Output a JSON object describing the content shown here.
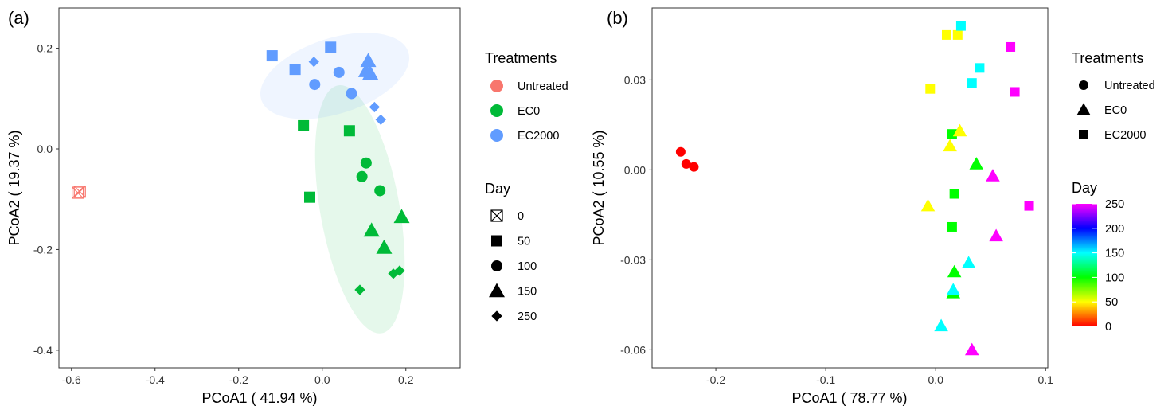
{
  "chart_data": [
    {
      "type": "scatter",
      "panel_label": "(a)",
      "xlabel": "PCoA1 ( 41.94 %)",
      "ylabel": "PCoA2 ( 19.37 %)",
      "xlim": [
        -0.63,
        0.33
      ],
      "ylim": [
        -0.435,
        0.28
      ],
      "xticks": [
        -0.6,
        -0.4,
        -0.2,
        0.0,
        0.2
      ],
      "xtick_labels": [
        "-0.6",
        "-0.4",
        "-0.2",
        "0.0",
        "0.2"
      ],
      "yticks": [
        -0.4,
        -0.2,
        0.0,
        0.2
      ],
      "ytick_labels": [
        "-0.4",
        "-0.2",
        "0.0",
        "0.2"
      ],
      "grid": false,
      "legend_position": "right",
      "legends": [
        {
          "title": "Treatments",
          "items": [
            {
              "label": "Untreated",
              "color": "#F8766D"
            },
            {
              "label": "EC0",
              "color": "#00BA38"
            },
            {
              "label": "EC2000",
              "color": "#619CFF"
            }
          ]
        },
        {
          "title": "Day",
          "items": [
            {
              "label": "0",
              "shape": "square-cross"
            },
            {
              "label": "50",
              "shape": "square"
            },
            {
              "label": "100",
              "shape": "circle"
            },
            {
              "label": "150",
              "shape": "triangle"
            },
            {
              "label": "250",
              "shape": "diamond"
            }
          ]
        }
      ],
      "ellipses": [
        {
          "group": "EC0",
          "color": "#00BA38",
          "center": [
            0.09,
            -0.12
          ],
          "rx": 0.095,
          "ry": 0.25,
          "angle_deg": 10
        },
        {
          "group": "EC2000",
          "color": "#619CFF",
          "center": [
            0.03,
            0.145
          ],
          "rx": 0.185,
          "ry": 0.075,
          "angle_deg": 18
        }
      ],
      "points": [
        {
          "x": -0.585,
          "y": -0.087,
          "treatment": "Untreated",
          "day": 0
        },
        {
          "x": -0.58,
          "y": -0.085,
          "treatment": "Untreated",
          "day": 0
        },
        {
          "x": -0.12,
          "y": 0.185,
          "treatment": "EC2000",
          "day": 50
        },
        {
          "x": -0.065,
          "y": 0.158,
          "treatment": "EC2000",
          "day": 50
        },
        {
          "x": 0.02,
          "y": 0.202,
          "treatment": "EC2000",
          "day": 50
        },
        {
          "x": -0.018,
          "y": 0.128,
          "treatment": "EC2000",
          "day": 100
        },
        {
          "x": 0.04,
          "y": 0.152,
          "treatment": "EC2000",
          "day": 100
        },
        {
          "x": 0.07,
          "y": 0.11,
          "treatment": "EC2000",
          "day": 100
        },
        {
          "x": 0.11,
          "y": 0.175,
          "treatment": "EC2000",
          "day": 150
        },
        {
          "x": 0.105,
          "y": 0.155,
          "treatment": "EC2000",
          "day": 150
        },
        {
          "x": 0.115,
          "y": 0.15,
          "treatment": "EC2000",
          "day": 150
        },
        {
          "x": -0.02,
          "y": 0.173,
          "treatment": "EC2000",
          "day": 250
        },
        {
          "x": 0.125,
          "y": 0.083,
          "treatment": "EC2000",
          "day": 250
        },
        {
          "x": 0.14,
          "y": 0.058,
          "treatment": "EC2000",
          "day": 250
        },
        {
          "x": -0.045,
          "y": 0.046,
          "treatment": "EC0",
          "day": 50
        },
        {
          "x": 0.065,
          "y": 0.036,
          "treatment": "EC0",
          "day": 50
        },
        {
          "x": -0.03,
          "y": -0.096,
          "treatment": "EC0",
          "day": 50
        },
        {
          "x": 0.105,
          "y": -0.028,
          "treatment": "EC0",
          "day": 100
        },
        {
          "x": 0.095,
          "y": -0.055,
          "treatment": "EC0",
          "day": 100
        },
        {
          "x": 0.138,
          "y": -0.083,
          "treatment": "EC0",
          "day": 100
        },
        {
          "x": 0.19,
          "y": -0.135,
          "treatment": "EC0",
          "day": 150
        },
        {
          "x": 0.118,
          "y": -0.162,
          "treatment": "EC0",
          "day": 150
        },
        {
          "x": 0.148,
          "y": -0.196,
          "treatment": "EC0",
          "day": 150
        },
        {
          "x": 0.09,
          "y": -0.28,
          "treatment": "EC0",
          "day": 250
        },
        {
          "x": 0.17,
          "y": -0.248,
          "treatment": "EC0",
          "day": 250
        },
        {
          "x": 0.185,
          "y": -0.242,
          "treatment": "EC0",
          "day": 250
        }
      ]
    },
    {
      "type": "scatter",
      "panel_label": "(b)",
      "xlabel": "PCoA1 ( 78.77 %)",
      "ylabel": "PCoA2 ( 10.55 %)",
      "xlim": [
        -0.258,
        0.102
      ],
      "ylim": [
        -0.066,
        0.054
      ],
      "xticks": [
        -0.2,
        -0.1,
        0.0,
        0.1
      ],
      "xtick_labels": [
        "-0.2",
        "-0.1",
        "0.0",
        "0.1"
      ],
      "yticks": [
        -0.06,
        -0.03,
        0.0,
        0.03
      ],
      "ytick_labels": [
        "-0.06",
        "-0.03",
        "0.00",
        "0.03"
      ],
      "grid": false,
      "legend_position": "right",
      "legends": [
        {
          "title": "Treatments",
          "items": [
            {
              "label": "Untreated",
              "shape": "circle"
            },
            {
              "label": "EC0",
              "shape": "triangle"
            },
            {
              "label": "EC2000",
              "shape": "square"
            }
          ]
        },
        {
          "title": "Day",
          "type": "colorbar",
          "range": [
            0,
            250
          ],
          "ticks": [
            "0",
            "50",
            "100",
            "150",
            "200",
            "250"
          ],
          "tick_values": [
            0,
            50,
            100,
            150,
            200,
            250
          ],
          "colors": [
            "#FF0000",
            "#FFFF00",
            "#00FF00",
            "#00FFFF",
            "#0000FF",
            "#FF00FF"
          ]
        }
      ],
      "points": [
        {
          "x": -0.232,
          "y": 0.006,
          "treatment": "Untreated",
          "day": 0
        },
        {
          "x": -0.227,
          "y": 0.002,
          "treatment": "Untreated",
          "day": 0
        },
        {
          "x": -0.22,
          "y": 0.001,
          "treatment": "Untreated",
          "day": 0
        },
        {
          "x": 0.01,
          "y": 0.045,
          "treatment": "EC2000",
          "day": 50
        },
        {
          "x": 0.02,
          "y": 0.045,
          "treatment": "EC2000",
          "day": 50
        },
        {
          "x": -0.005,
          "y": 0.027,
          "treatment": "EC2000",
          "day": 50
        },
        {
          "x": 0.015,
          "y": 0.012,
          "treatment": "EC2000",
          "day": 100
        },
        {
          "x": 0.017,
          "y": -0.008,
          "treatment": "EC2000",
          "day": 100
        },
        {
          "x": 0.015,
          "y": -0.019,
          "treatment": "EC2000",
          "day": 100
        },
        {
          "x": 0.023,
          "y": 0.048,
          "treatment": "EC2000",
          "day": 150
        },
        {
          "x": 0.04,
          "y": 0.034,
          "treatment": "EC2000",
          "day": 150
        },
        {
          "x": 0.033,
          "y": 0.029,
          "treatment": "EC2000",
          "day": 150
        },
        {
          "x": 0.068,
          "y": 0.041,
          "treatment": "EC2000",
          "day": 250
        },
        {
          "x": 0.072,
          "y": 0.026,
          "treatment": "EC2000",
          "day": 250
        },
        {
          "x": 0.085,
          "y": -0.012,
          "treatment": "EC2000",
          "day": 250
        },
        {
          "x": 0.022,
          "y": 0.013,
          "treatment": "EC0",
          "day": 50
        },
        {
          "x": 0.013,
          "y": 0.008,
          "treatment": "EC0",
          "day": 50
        },
        {
          "x": -0.007,
          "y": -0.012,
          "treatment": "EC0",
          "day": 50
        },
        {
          "x": 0.037,
          "y": 0.002,
          "treatment": "EC0",
          "day": 100
        },
        {
          "x": 0.017,
          "y": -0.034,
          "treatment": "EC0",
          "day": 100
        },
        {
          "x": 0.016,
          "y": -0.041,
          "treatment": "EC0",
          "day": 100
        },
        {
          "x": 0.03,
          "y": -0.031,
          "treatment": "EC0",
          "day": 150
        },
        {
          "x": 0.016,
          "y": -0.04,
          "treatment": "EC0",
          "day": 150
        },
        {
          "x": 0.005,
          "y": -0.052,
          "treatment": "EC0",
          "day": 150
        },
        {
          "x": 0.052,
          "y": -0.002,
          "treatment": "EC0",
          "day": 250
        },
        {
          "x": 0.055,
          "y": -0.022,
          "treatment": "EC0",
          "day": 250
        },
        {
          "x": 0.033,
          "y": -0.06,
          "treatment": "EC0",
          "day": 250
        }
      ]
    }
  ]
}
